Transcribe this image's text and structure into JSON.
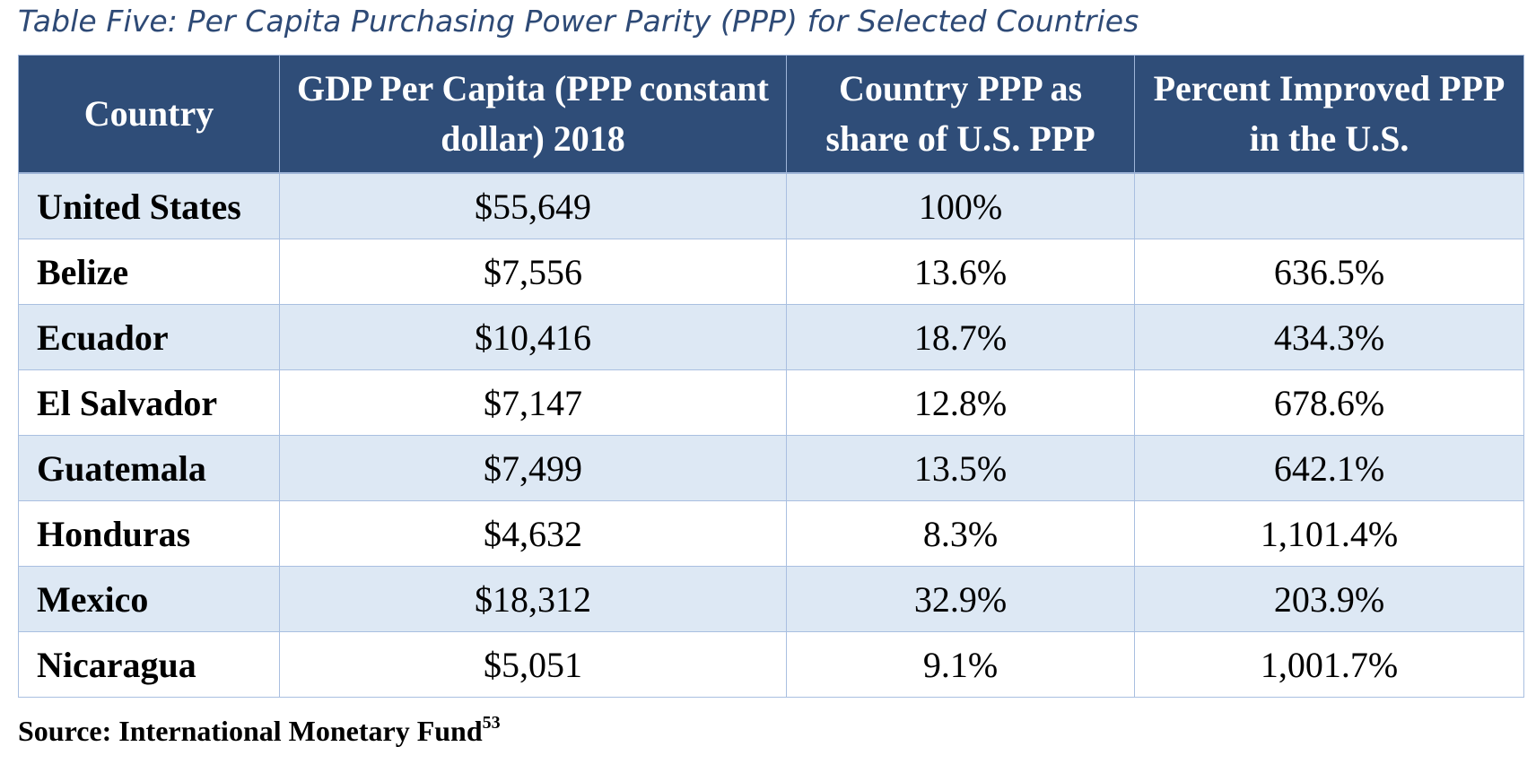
{
  "caption": "Table Five: Per Capita Purchasing Power Parity (PPP) for Selected Countries",
  "table": {
    "headers": [
      "Country",
      "GDP Per Capita (PPP constant dollar) 2018",
      "Country PPP as share of U.S. PPP",
      "Percent Improved PPP in the U.S."
    ],
    "rows": [
      {
        "country": "United States",
        "gdp": "$55,649",
        "share": "100%",
        "improved": ""
      },
      {
        "country": "Belize",
        "gdp": "$7,556",
        "share": "13.6%",
        "improved": "636.5%"
      },
      {
        "country": "Ecuador",
        "gdp": "$10,416",
        "share": "18.7%",
        "improved": "434.3%"
      },
      {
        "country": "El Salvador",
        "gdp": "$7,147",
        "share": "12.8%",
        "improved": "678.6%"
      },
      {
        "country": "Guatemala",
        "gdp": "$7,499",
        "share": "13.5%",
        "improved": "642.1%"
      },
      {
        "country": "Honduras",
        "gdp": "$4,632",
        "share": "8.3%",
        "improved": "1,101.4%"
      },
      {
        "country": "Mexico",
        "gdp": "$18,312",
        "share": "32.9%",
        "improved": "203.9%"
      },
      {
        "country": "Nicaragua",
        "gdp": "$5,051",
        "share": "9.1%",
        "improved": "1,001.7%"
      }
    ]
  },
  "source": {
    "text": "Source: International Monetary Fund",
    "footnote": "53"
  },
  "colors": {
    "header_background": "#2f4d78",
    "header_text": "#ffffff",
    "band_row": "#dde8f4",
    "plain_row": "#ffffff",
    "caption_text": "#2e4a76",
    "grid_line": "#a9bfe0"
  }
}
